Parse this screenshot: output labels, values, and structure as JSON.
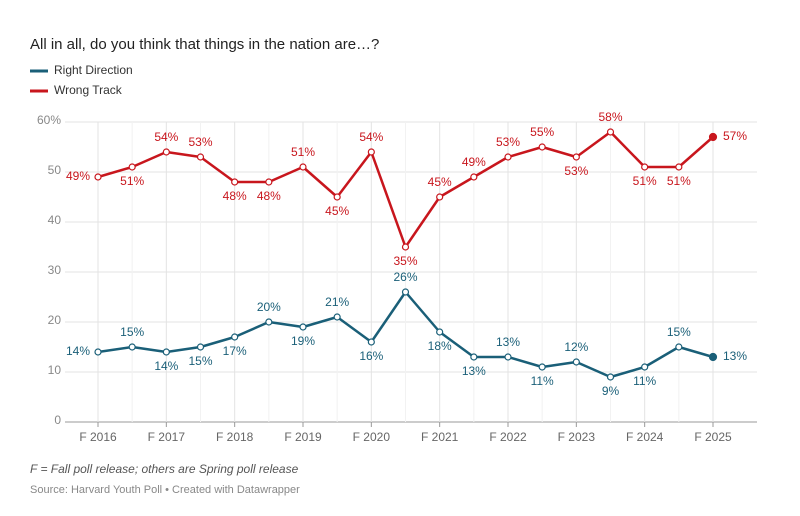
{
  "chart_data": {
    "type": "line",
    "title": "All in all, do you think that things in the nation are…?",
    "categories": [
      "F 2016",
      null,
      "F 2017",
      null,
      "F 2018",
      null,
      "F 2019",
      null,
      "F 2020",
      null,
      "F 2021",
      null,
      "F 2022",
      null,
      "F 2023",
      null,
      "F 2024",
      null,
      "F 2025"
    ],
    "series": [
      {
        "name": "Right Direction",
        "color": "#1a5f78",
        "values": [
          14,
          15,
          14,
          15,
          17,
          20,
          19,
          21,
          16,
          26,
          18,
          13,
          13,
          11,
          12,
          9,
          11,
          15,
          13
        ],
        "value_labels": [
          "14%",
          "15%",
          "14%",
          "15%",
          "17%",
          "20%",
          "19%",
          "21%",
          "16%",
          "26%",
          "18%",
          "13%",
          "13%",
          "11%",
          "12%",
          "9%",
          "11%",
          "15%",
          "13%"
        ]
      },
      {
        "name": "Wrong Track",
        "color": "#c8161d",
        "values": [
          49,
          51,
          54,
          53,
          48,
          48,
          51,
          45,
          54,
          35,
          45,
          49,
          53,
          55,
          53,
          58,
          51,
          51,
          57
        ],
        "value_labels": [
          "49%",
          "51%",
          "54%",
          "53%",
          "48%",
          "48%",
          "51%",
          "45%",
          "54%",
          "35%",
          "45%",
          "49%",
          "53%",
          "55%",
          "53%",
          "58%",
          "51%",
          "51%",
          "57%"
        ]
      }
    ],
    "ylim": [
      0,
      60
    ],
    "yticks": [
      0,
      10,
      20,
      30,
      40,
      50,
      {
        "value": 60,
        "label": "60%"
      }
    ],
    "grid": true,
    "note": "F = Fall poll release; others are Spring poll release",
    "source": "Source: Harvard Youth Poll • Created with Datawrapper"
  }
}
